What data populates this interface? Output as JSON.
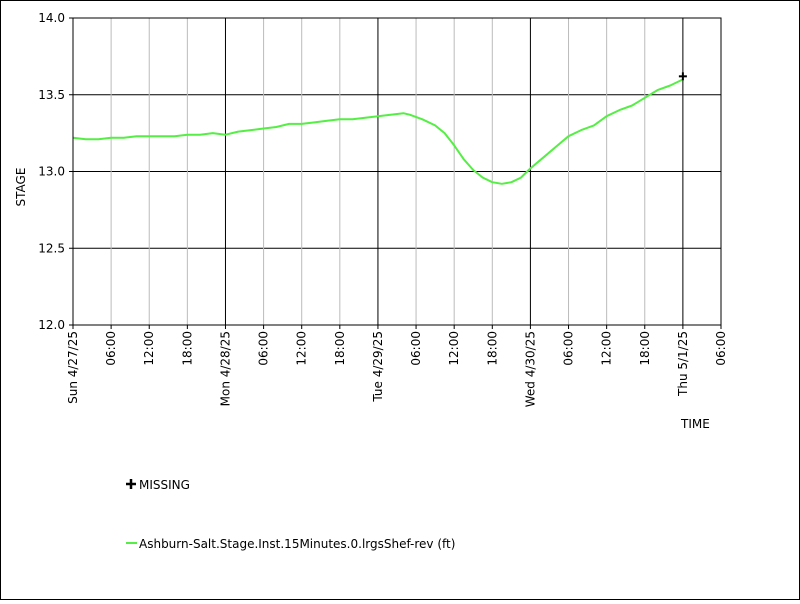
{
  "chart_data": {
    "type": "line",
    "ylabel": "STAGE",
    "xlabel": "TIME",
    "ylim": [
      12.0,
      14.0
    ],
    "y_ticks": [
      "12.0",
      "12.5",
      "13.0",
      "13.5",
      "14.0"
    ],
    "x_ticks": [
      "Sun 4/27/25",
      "06:00",
      "12:00",
      "18:00",
      "Mon 4/28/25",
      "06:00",
      "12:00",
      "18:00",
      "Tue 4/29/25",
      "06:00",
      "12:00",
      "18:00",
      "Wed 4/30/25",
      "06:00",
      "12:00",
      "18:00",
      "Thu 5/1/25",
      "06:00"
    ],
    "x_range_hours": [
      0,
      102
    ],
    "series": [
      {
        "name": "Ashburn-Salt.Stage.Inst.15Minutes.0.lrgsShef-rev (ft)",
        "color": "#55ee44",
        "x_hours": [
          0,
          2,
          4,
          6,
          8,
          10,
          12,
          14,
          16,
          18,
          20,
          22,
          24,
          26,
          28,
          30,
          32,
          34,
          36,
          38,
          40,
          42,
          44,
          46,
          48,
          50,
          52,
          53,
          55,
          57,
          58.5,
          60,
          61.5,
          63,
          64.5,
          66,
          67.5,
          69,
          70.5,
          72,
          74,
          76,
          78,
          80,
          82,
          84,
          86,
          88,
          90,
          92,
          94,
          96
        ],
        "values": [
          13.22,
          13.21,
          13.21,
          13.22,
          13.22,
          13.23,
          13.23,
          13.23,
          13.23,
          13.24,
          13.24,
          13.25,
          13.24,
          13.26,
          13.27,
          13.28,
          13.29,
          13.31,
          13.31,
          13.32,
          13.33,
          13.34,
          13.34,
          13.35,
          13.36,
          13.37,
          13.38,
          13.37,
          13.34,
          13.3,
          13.25,
          13.17,
          13.08,
          13.01,
          12.96,
          12.93,
          12.92,
          12.93,
          12.96,
          13.02,
          13.09,
          13.16,
          13.23,
          13.27,
          13.3,
          13.36,
          13.4,
          13.43,
          13.48,
          13.53,
          13.56,
          13.6
        ]
      }
    ],
    "missing": [
      {
        "x_hour": 96,
        "value": 13.62
      }
    ],
    "legend": {
      "missing_label": "MISSING",
      "series_label": "Ashburn-Salt.Stage.Inst.15Minutes.0.lrgsShef-rev (ft)"
    },
    "grid": true
  }
}
